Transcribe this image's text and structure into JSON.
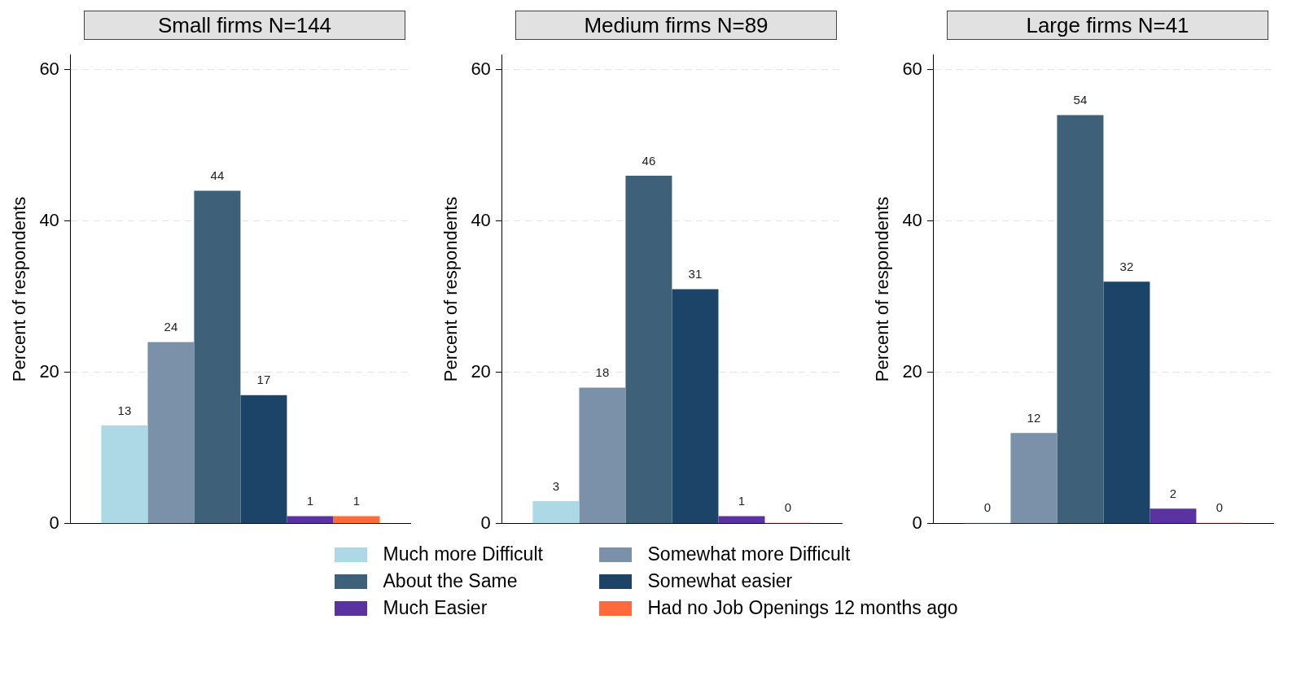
{
  "chart_data": [
    {
      "type": "bar",
      "title": "Small firms N=144",
      "ylabel": "Percent of respondents",
      "categories": [
        null
      ],
      "ylim": [
        0,
        62
      ],
      "yticks": [
        0,
        20,
        40,
        60
      ],
      "grid": "y",
      "data_labels": true,
      "legend": "bottom",
      "series": [
        {
          "name": "Much more Difficult",
          "color": "#add8e6",
          "values": [
            13
          ]
        },
        {
          "name": "Somewhat more Difficult",
          "color": "#7b91a9",
          "values": [
            24
          ]
        },
        {
          "name": "About the Same",
          "color": "#3e6079",
          "values": [
            44
          ]
        },
        {
          "name": "Somewhat easier",
          "color": "#1c4469",
          "values": [
            17
          ]
        },
        {
          "name": "Much Easier",
          "color": "#5a33a0",
          "values": [
            1
          ]
        },
        {
          "name": "Had no Job Openings 12 months ago",
          "color": "#ff6a3d",
          "values": [
            1
          ]
        }
      ]
    },
    {
      "type": "bar",
      "title": "Medium firms N=89",
      "ylabel": "Percent of respondents",
      "categories": [
        null
      ],
      "ylim": [
        0,
        62
      ],
      "yticks": [
        0,
        20,
        40,
        60
      ],
      "grid": "y",
      "data_labels": true,
      "series": [
        {
          "color": "#add8e6",
          "values": [
            3
          ]
        },
        {
          "color": "#7b91a9",
          "values": [
            18
          ]
        },
        {
          "color": "#3e6079",
          "values": [
            46
          ]
        },
        {
          "color": "#1c4469",
          "values": [
            31
          ]
        },
        {
          "color": "#5a33a0",
          "values": [
            1
          ]
        },
        {
          "color": "#ff6a3d",
          "values": [
            0
          ]
        }
      ]
    },
    {
      "type": "bar",
      "title": "Large firms N=41",
      "ylabel": "Percent of respondents",
      "categories": [
        null
      ],
      "ylim": [
        0,
        62
      ],
      "yticks": [
        0,
        20,
        40,
        60
      ],
      "grid": "y",
      "data_labels": true,
      "series": [
        {
          "color": "#add8e6",
          "values": [
            0
          ]
        },
        {
          "color": "#7b91a9",
          "values": [
            12
          ]
        },
        {
          "color": "#3e6079",
          "values": [
            54
          ]
        },
        {
          "color": "#1c4469",
          "values": [
            32
          ]
        },
        {
          "color": "#5a33a0",
          "values": [
            2
          ]
        },
        {
          "color": "#ff6a3d",
          "values": [
            0
          ]
        }
      ]
    }
  ]
}
